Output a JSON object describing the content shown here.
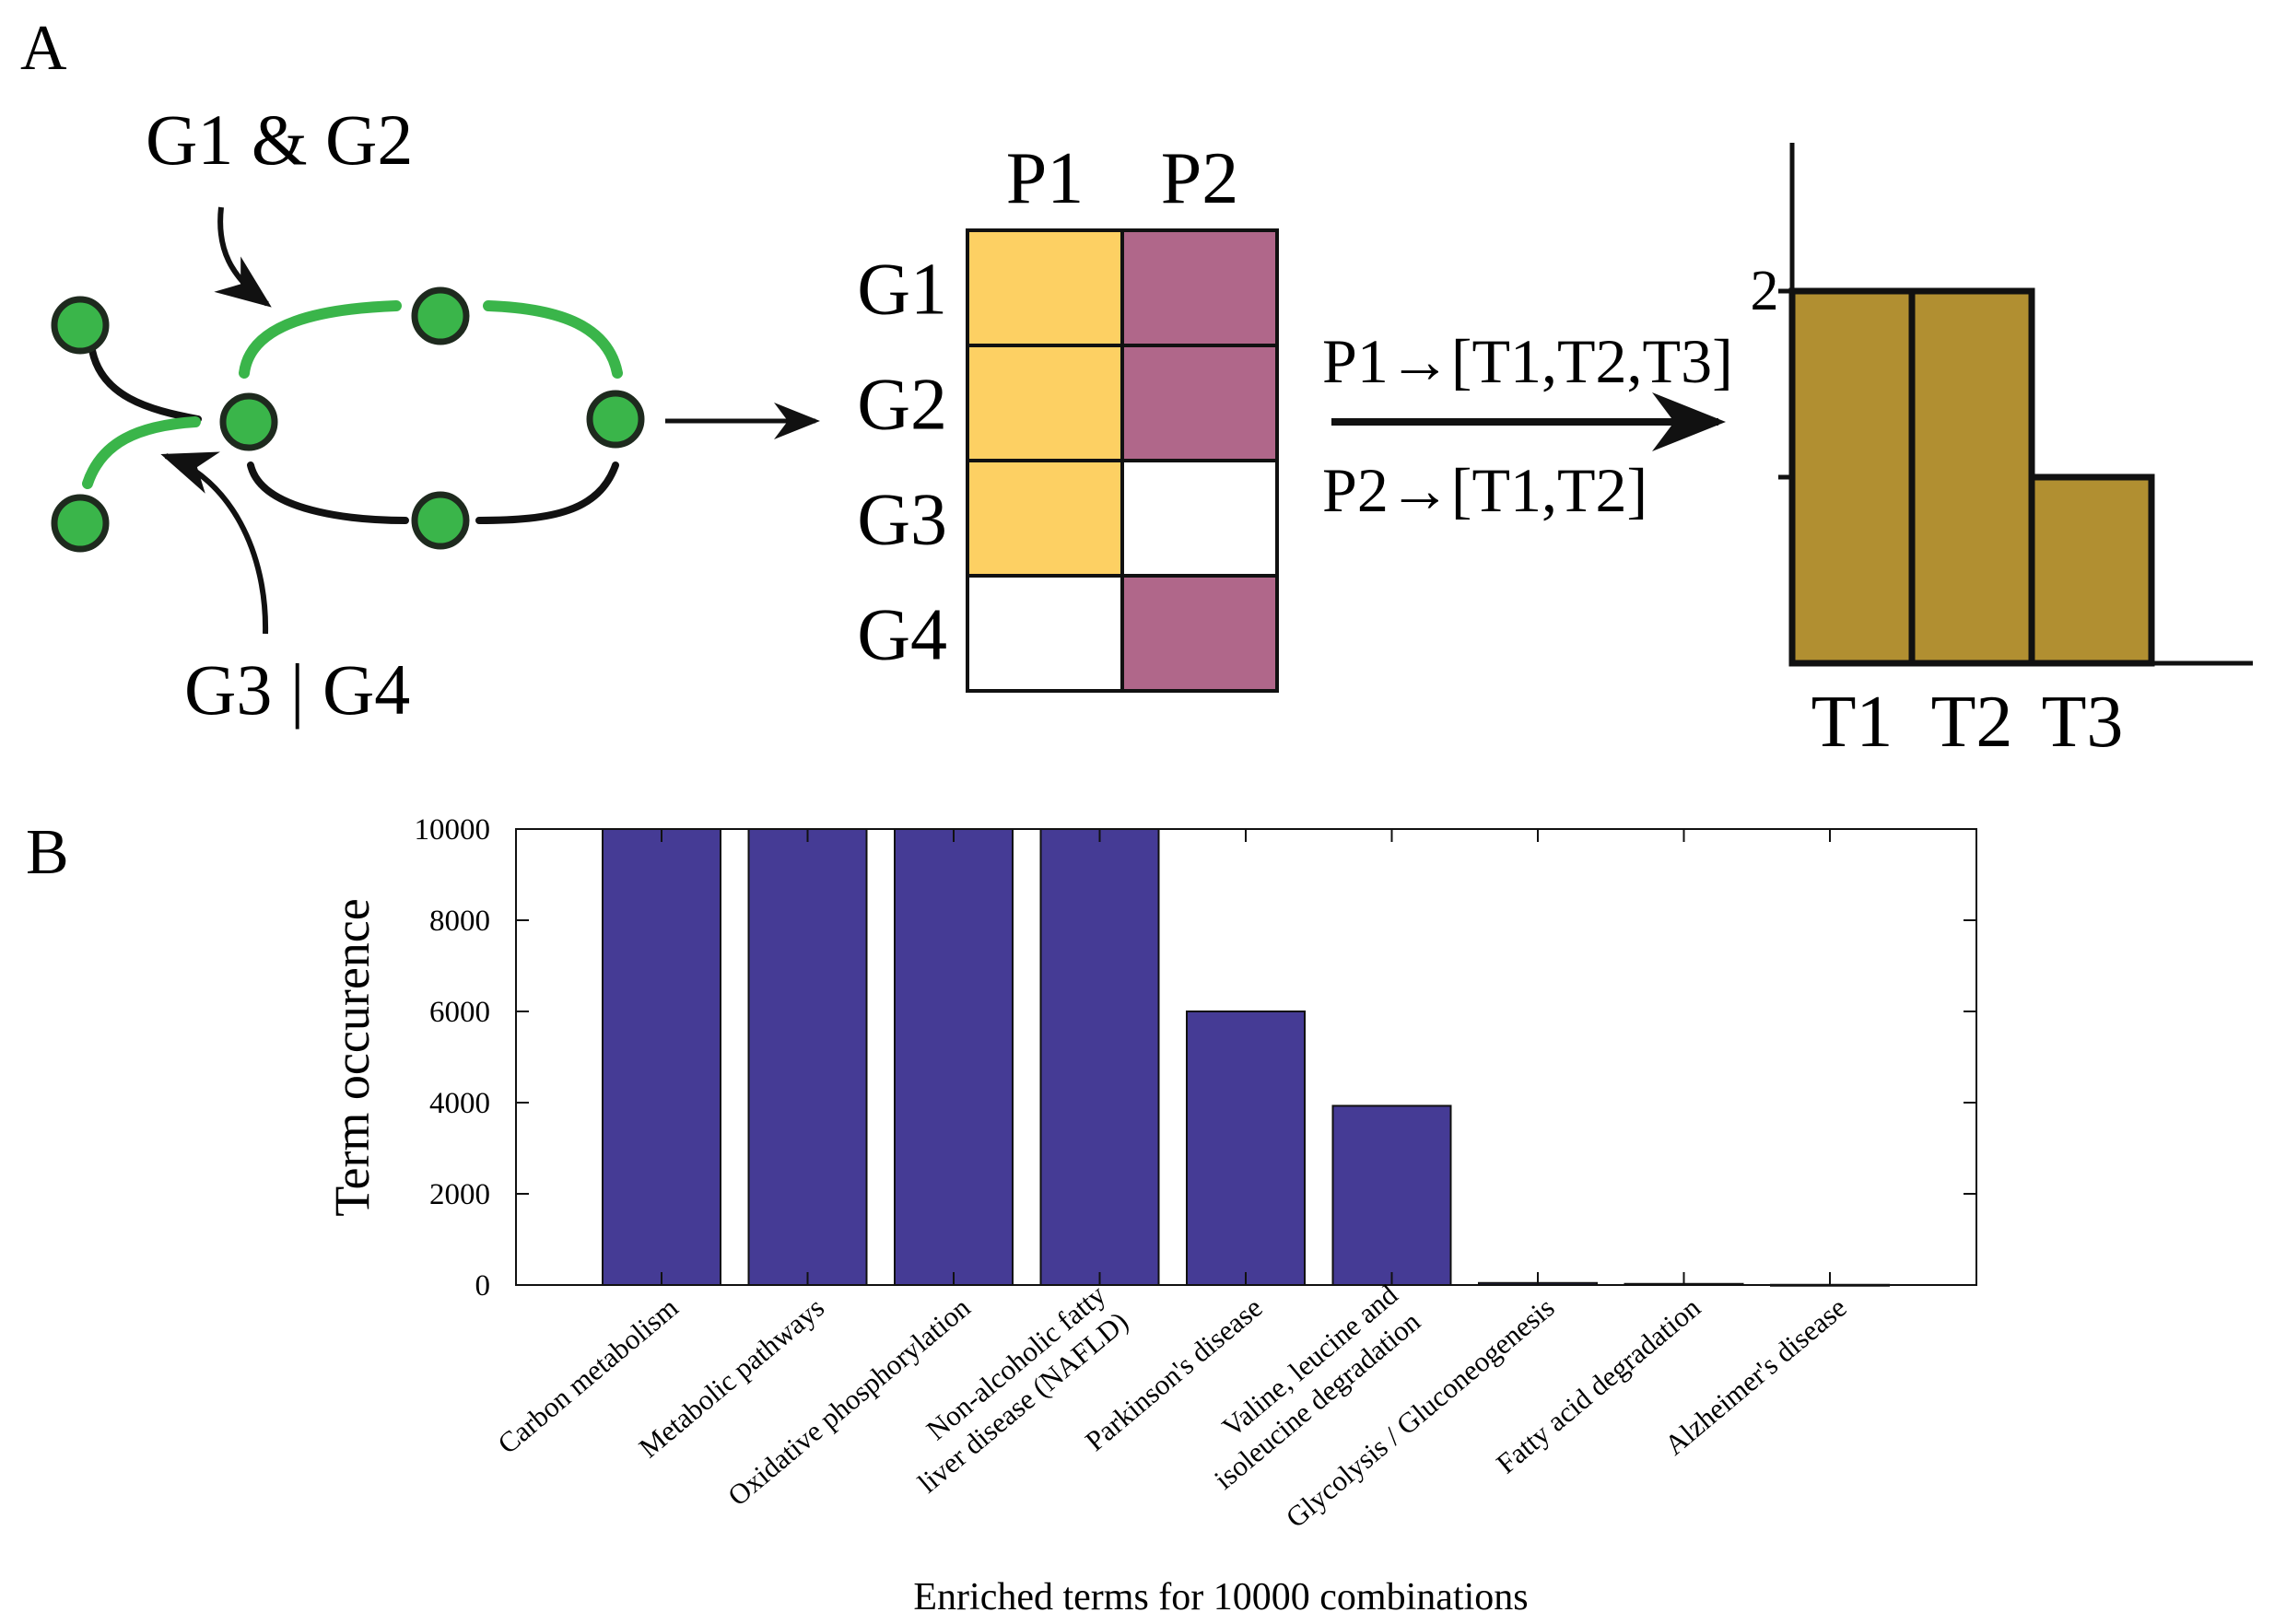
{
  "panel_a": {
    "label": "A",
    "network": {
      "annotation_and": "G1 & G2",
      "annotation_or": "G3 | G4",
      "colors": {
        "node_fill": "#3ab54a",
        "node_stroke": "#1e2a1e",
        "green_edge": "#3ab54a",
        "black_edge": "#111111"
      }
    },
    "matrix": {
      "columns": [
        "P1",
        "P2"
      ],
      "rows": [
        {
          "label": "G1",
          "cells": [
            true,
            true
          ]
        },
        {
          "label": "G2",
          "cells": [
            true,
            true
          ]
        },
        {
          "label": "G3",
          "cells": [
            true,
            false
          ]
        },
        {
          "label": "G4",
          "cells": [
            false,
            true
          ]
        }
      ],
      "colors": {
        "P1": "#fdd063",
        "P2": "#b0678a",
        "empty": "#ffffff"
      }
    },
    "mapping": {
      "line1": "P1→[T1,T2,T3]",
      "line2": "P2→[T1,T2]"
    },
    "histogram": {
      "y_tick_label": "2",
      "categories": [
        "T1",
        "T2",
        "T3"
      ],
      "values": [
        2,
        2,
        1
      ],
      "color": "#b18f31"
    }
  },
  "panel_b": {
    "label": "B"
  },
  "chart_data": {
    "type": "bar",
    "categories": [
      "Carbon metabolism",
      "Metabolic pathways",
      "Oxidative phosphorylation",
      "Non-alcoholic fatty liver disease (NAFLD)",
      "Parkinson's disease",
      "Valine, leucine and isoleucine degradation",
      "Glycolysis / Gluconeogenesis",
      "Fatty acid degradation",
      "Alzheimer's disease"
    ],
    "category_lines": [
      [
        "Carbon metabolism"
      ],
      [
        "Metabolic pathways"
      ],
      [
        "Oxidative phosphorylation"
      ],
      [
        "Non-alcoholic fatty",
        "liver disease (NAFLD)"
      ],
      [
        "Parkinson's disease"
      ],
      [
        "Valine, leucine and",
        "isoleucine degradation"
      ],
      [
        "Glycolysis / Gluconeogenesis"
      ],
      [
        "Fatty acid degradation"
      ],
      [
        "Alzheimer's disease"
      ]
    ],
    "values": [
      10000,
      10000,
      10000,
      10000,
      6000,
      3930,
      45,
      25,
      5
    ],
    "title": "",
    "xlabel": "Enriched terms for 10000 combinations",
    "ylabel": "Term occurence",
    "ylim": [
      0,
      10000
    ],
    "yticks": [
      0,
      2000,
      4000,
      6000,
      8000,
      10000
    ],
    "bar_color": "#453b95",
    "grid": false,
    "legend": "none"
  }
}
